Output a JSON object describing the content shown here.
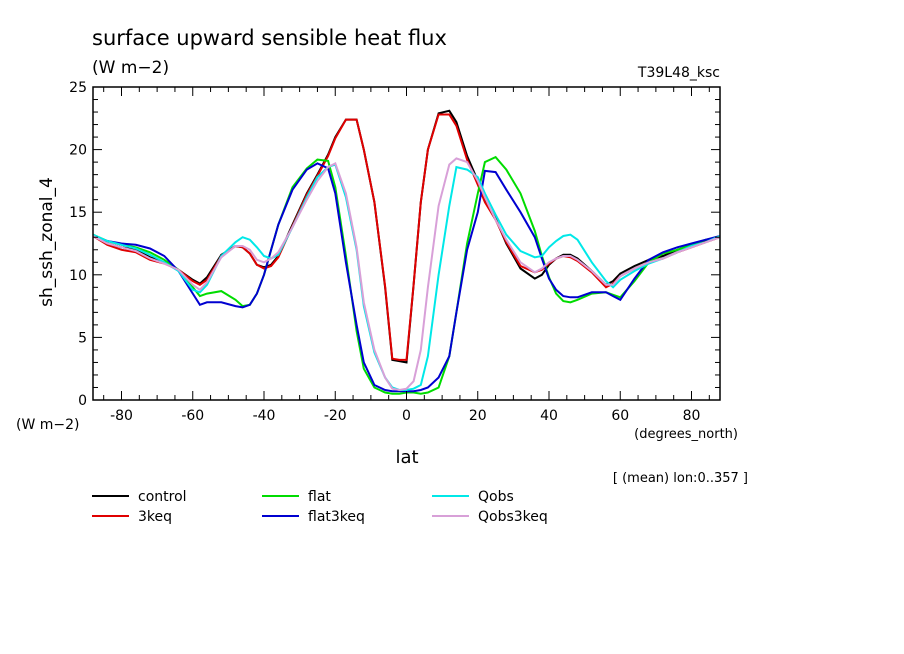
{
  "header": {
    "title": "surface upward sensible heat flux",
    "units": "(W m−2)",
    "experiment": "T39L48_ksc"
  },
  "footer": {
    "note": "[ (mean) lon:0..357 ]"
  },
  "chart_data": {
    "type": "line",
    "title": "surface upward sensible heat flux",
    "subtitle": "(W m−2)",
    "xlabel": "lat",
    "xunits": "(degrees_north)",
    "ylabel": "sh_ssh_zonal_4",
    "yunits": "(W m−2)",
    "xlim": [
      -88,
      88
    ],
    "ylim": [
      0,
      25
    ],
    "xticks": [
      -80,
      -60,
      -40,
      -20,
      0,
      20,
      40,
      60,
      80
    ],
    "yticks": [
      0,
      5,
      10,
      15,
      20,
      25
    ],
    "grid": false,
    "legend": "bottom",
    "x": [
      -88,
      -84,
      -80,
      -76,
      -72,
      -68,
      -64,
      -60,
      -58,
      -56,
      -52,
      -48,
      -46,
      -44,
      -42,
      -40,
      -38,
      -36,
      -32,
      -28,
      -25,
      -22,
      -20,
      -17,
      -14,
      -12,
      -9,
      -6,
      -4,
      -2,
      0,
      2,
      4,
      6,
      9,
      12,
      14,
      17,
      20,
      22,
      25,
      28,
      32,
      36,
      38,
      40,
      42,
      44,
      46,
      48,
      52,
      56,
      58,
      60,
      64,
      68,
      72,
      76,
      80,
      84,
      88
    ],
    "series": [
      {
        "name": "control",
        "color": "#000000",
        "values": [
          13.2,
          12.5,
          12.2,
          12.0,
          11.4,
          11.0,
          10.4,
          9.6,
          9.3,
          9.8,
          11.6,
          12.3,
          12.2,
          11.7,
          10.8,
          10.6,
          10.8,
          11.5,
          14.0,
          16.5,
          18.0,
          19.6,
          21.0,
          22.4,
          22.4,
          20.0,
          15.8,
          9.0,
          3.2,
          3.1,
          3.0,
          9.2,
          15.8,
          20.0,
          22.9,
          23.1,
          22.2,
          19.5,
          17.5,
          16.0,
          14.5,
          12.5,
          10.5,
          9.7,
          10.0,
          10.8,
          11.3,
          11.6,
          11.6,
          11.3,
          10.3,
          9.2,
          9.5,
          10.1,
          10.7,
          11.2,
          11.5,
          12.0,
          12.4,
          12.7,
          13.0
        ]
      },
      {
        "name": "3keq",
        "color": "#e00000",
        "values": [
          13.1,
          12.4,
          12.0,
          11.8,
          11.2,
          10.9,
          10.4,
          9.5,
          9.2,
          9.6,
          11.5,
          12.3,
          12.2,
          11.7,
          10.8,
          10.5,
          10.7,
          11.4,
          13.9,
          16.4,
          17.9,
          19.5,
          20.9,
          22.4,
          22.4,
          20.0,
          15.8,
          9.1,
          3.3,
          3.2,
          3.2,
          9.2,
          15.8,
          20.0,
          22.8,
          22.8,
          21.9,
          19.2,
          17.2,
          15.8,
          14.4,
          12.6,
          10.7,
          10.2,
          10.4,
          10.9,
          11.3,
          11.5,
          11.4,
          11.1,
          10.2,
          9.0,
          9.3,
          9.9,
          10.5,
          11.0,
          11.3,
          11.8,
          12.2,
          12.6,
          13.0
        ]
      },
      {
        "name": "flat",
        "color": "#00dc00",
        "values": [
          13.2,
          12.7,
          12.4,
          12.2,
          11.8,
          11.2,
          10.4,
          9.0,
          8.3,
          8.5,
          8.7,
          8.0,
          7.5,
          7.6,
          8.5,
          10.0,
          12.0,
          14.0,
          17.0,
          18.5,
          19.2,
          19.1,
          17.0,
          11.5,
          5.5,
          2.5,
          1.0,
          0.6,
          0.5,
          0.5,
          0.6,
          0.6,
          0.5,
          0.6,
          1.0,
          3.5,
          7.0,
          12.5,
          16.5,
          19.0,
          19.4,
          18.4,
          16.5,
          13.5,
          11.5,
          9.8,
          8.5,
          7.9,
          7.8,
          8.0,
          8.5,
          8.6,
          8.4,
          8.2,
          9.5,
          11.0,
          11.7,
          12.0,
          12.4,
          12.8,
          13.0
        ]
      },
      {
        "name": "flat3keq",
        "color": "#0000d0",
        "values": [
          13.1,
          12.7,
          12.5,
          12.4,
          12.1,
          11.5,
          10.3,
          8.5,
          7.6,
          7.8,
          7.8,
          7.5,
          7.4,
          7.6,
          8.5,
          10.0,
          12.0,
          14.0,
          16.8,
          18.4,
          18.9,
          18.5,
          16.5,
          11.0,
          6.0,
          3.0,
          1.2,
          0.8,
          0.7,
          0.7,
          0.7,
          0.7,
          0.8,
          1.0,
          1.8,
          3.5,
          7.0,
          12.0,
          15.0,
          18.3,
          18.2,
          16.8,
          15.0,
          13.0,
          11.3,
          9.7,
          8.8,
          8.3,
          8.2,
          8.2,
          8.6,
          8.6,
          8.3,
          8.0,
          9.7,
          11.2,
          11.8,
          12.2,
          12.5,
          12.8,
          13.1
        ]
      },
      {
        "name": "Qobs",
        "color": "#00e8e8",
        "values": [
          13.2,
          12.7,
          12.4,
          12.1,
          11.6,
          11.0,
          10.3,
          8.8,
          8.6,
          9.2,
          11.5,
          12.6,
          13.0,
          12.8,
          12.2,
          11.5,
          11.3,
          11.6,
          13.8,
          16.2,
          17.8,
          18.6,
          18.8,
          16.2,
          12.0,
          7.5,
          3.8,
          1.8,
          1.0,
          0.8,
          0.8,
          0.9,
          1.2,
          3.5,
          10.0,
          15.5,
          18.6,
          18.4,
          17.8,
          16.5,
          14.8,
          13.2,
          11.9,
          11.4,
          11.5,
          12.2,
          12.7,
          13.1,
          13.2,
          12.8,
          11.0,
          9.5,
          9.0,
          9.6,
          10.3,
          10.9,
          11.3,
          11.8,
          12.3,
          12.6,
          13.1
        ]
      },
      {
        "name": "Qobs3keq",
        "color": "#d8a0d8",
        "values": [
          13.1,
          12.5,
          12.2,
          11.9,
          11.3,
          10.9,
          10.4,
          9.2,
          8.8,
          9.4,
          11.4,
          12.3,
          12.3,
          12.0,
          11.2,
          11.0,
          11.3,
          11.8,
          13.8,
          16.0,
          17.5,
          18.6,
          18.9,
          16.5,
          12.2,
          7.8,
          4.0,
          1.8,
          0.9,
          0.8,
          0.9,
          1.5,
          4.0,
          9.0,
          15.5,
          18.8,
          19.3,
          19.0,
          17.5,
          16.2,
          14.4,
          12.8,
          11.0,
          10.2,
          10.5,
          11.0,
          11.3,
          11.5,
          11.5,
          11.2,
          10.3,
          9.2,
          9.2,
          9.9,
          10.5,
          11.0,
          11.3,
          11.8,
          12.2,
          12.6,
          13.0
        ]
      }
    ]
  }
}
